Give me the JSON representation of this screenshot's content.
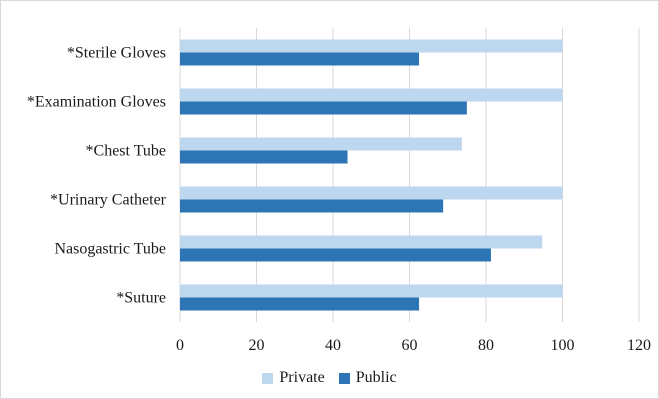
{
  "chart_data": {
    "type": "bar",
    "orientation": "horizontal",
    "categories": [
      "*Sterile Gloves",
      "*Examination Gloves",
      "*Chest Tube",
      "*Urinary Catheter",
      "Nasogastric Tube",
      "*Suture"
    ],
    "series": [
      {
        "name": "Private",
        "color": "#bdd7ee",
        "values": [
          100,
          100,
          73.7,
          100,
          94.7,
          100
        ]
      },
      {
        "name": "Public",
        "color": "#2e75b6",
        "values": [
          62.5,
          75,
          43.8,
          68.8,
          81.3,
          62.5
        ]
      }
    ],
    "xlim": [
      0,
      120
    ],
    "xticks": [
      "0",
      "20",
      "40",
      "60",
      "80",
      "100",
      "120"
    ],
    "grid": "vertical",
    "legend": "bottom"
  }
}
